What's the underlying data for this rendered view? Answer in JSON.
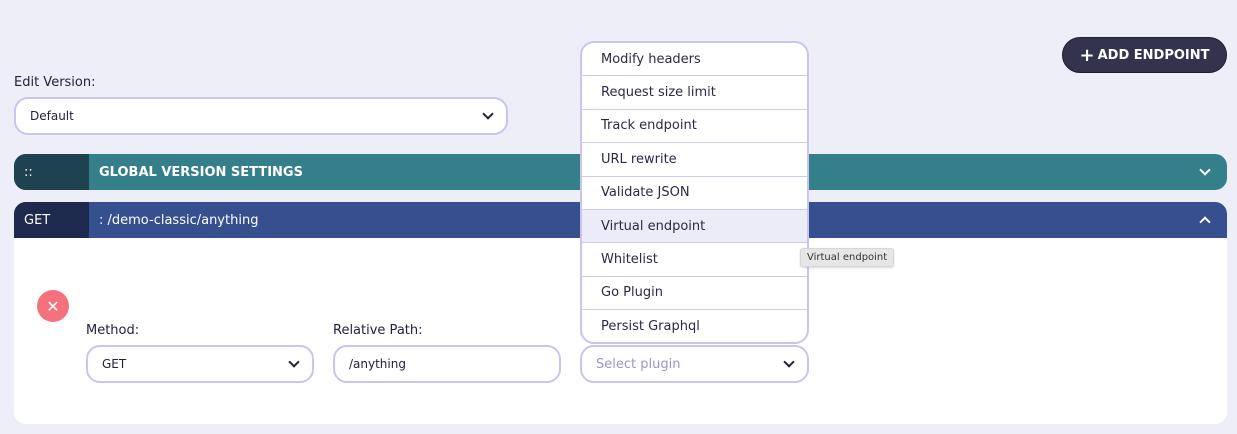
{
  "header": {
    "add_endpoint_label": "ADD ENDPOINT",
    "add_icon": "plus-icon"
  },
  "version": {
    "label": "Edit Version:",
    "value": "Default"
  },
  "global_settings": {
    "handle": "::",
    "title": "GLOBAL VERSION SETTINGS"
  },
  "endpoint": {
    "method": "GET",
    "path": ": /demo-classic/anything",
    "method_label": "Method:",
    "method_value": "GET",
    "path_label": "Relative Path:",
    "path_value": "/anything",
    "plugin_placeholder": "Select plugin"
  },
  "plugin_menu": {
    "items": [
      "Modify headers",
      "Request size limit",
      "Track endpoint",
      "URL rewrite",
      "Validate JSON",
      "Virtual endpoint",
      "Whitelist",
      "Go Plugin",
      "Persist Graphql"
    ],
    "highlighted": "Virtual endpoint"
  },
  "tooltip": "Virtual endpoint",
  "colors": {
    "background": "#eeeef9",
    "global_bar": "#357f8a",
    "endpoint_bar": "#354f8f",
    "add_button": "#33334d",
    "delete": "#f4717d"
  }
}
